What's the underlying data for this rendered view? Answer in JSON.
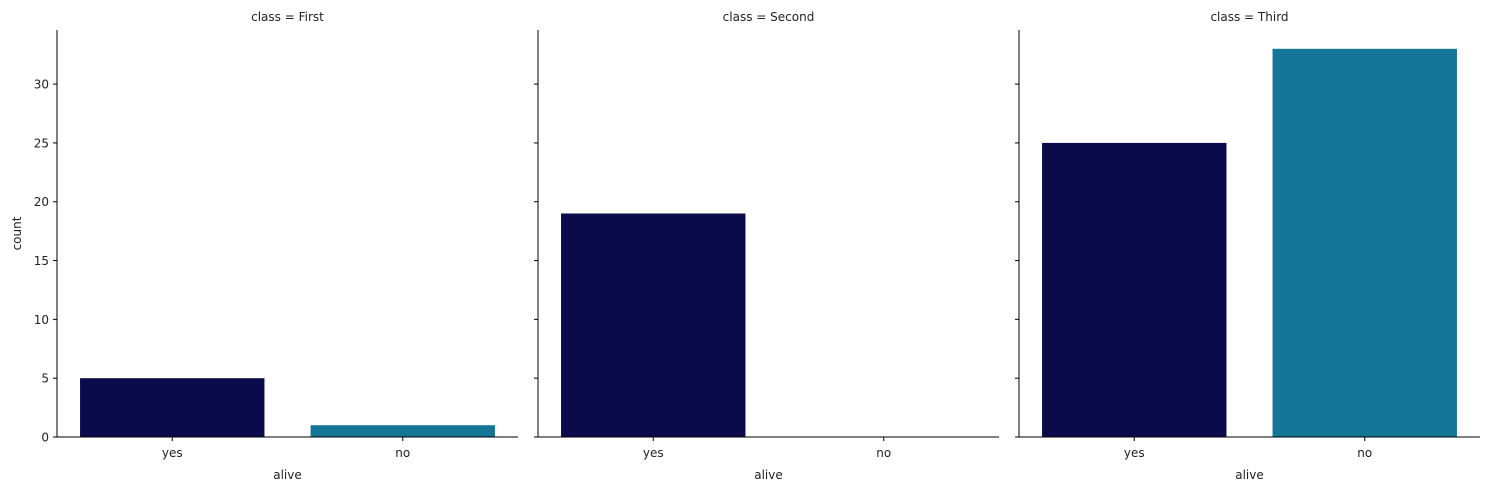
{
  "chart_data": {
    "type": "bar",
    "layout": "facet-grid",
    "ylabel": "count",
    "xlabel": "alive",
    "ylim": [
      0,
      34.6
    ],
    "yticks": [
      0,
      5,
      10,
      15,
      20,
      25,
      30
    ],
    "categories": [
      "yes",
      "no"
    ],
    "colors": {
      "yes": "#0b0b4b",
      "no": "#137696"
    },
    "panels": [
      {
        "title": "class = First",
        "values": [
          5,
          1
        ]
      },
      {
        "title": "class = Second",
        "values": [
          19,
          0
        ]
      },
      {
        "title": "class = Third",
        "values": [
          25,
          33
        ]
      }
    ]
  }
}
